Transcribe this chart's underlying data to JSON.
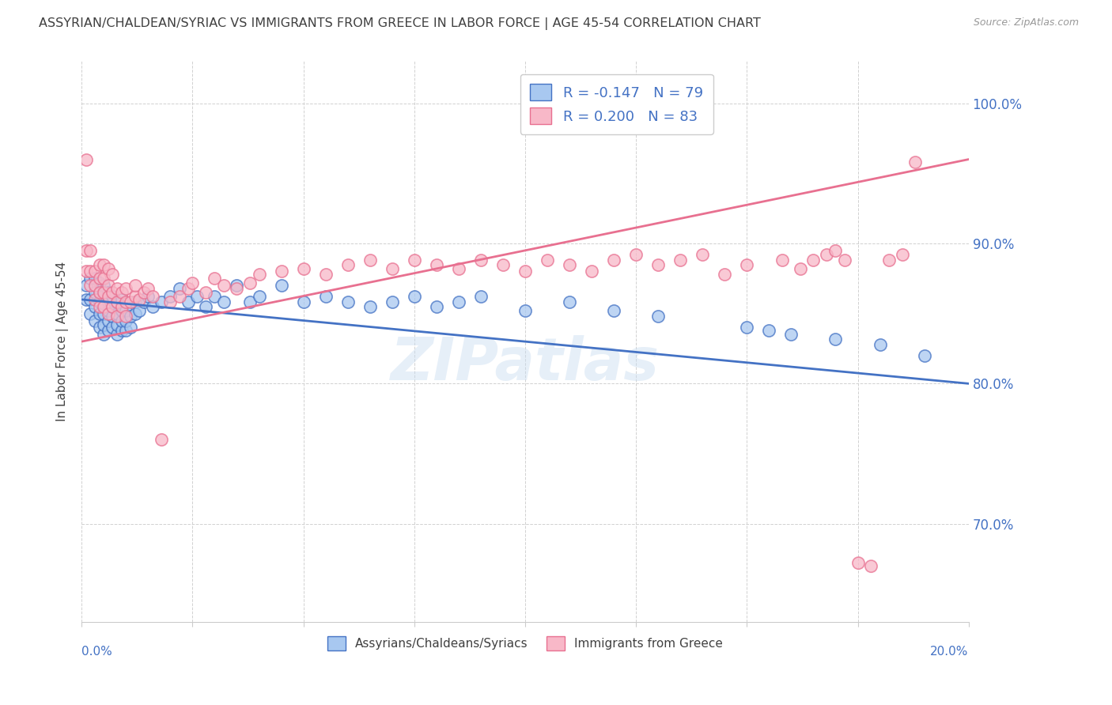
{
  "title": "ASSYRIAN/CHALDEAN/SYRIAC VS IMMIGRANTS FROM GREECE IN LABOR FORCE | AGE 45-54 CORRELATION CHART",
  "source": "Source: ZipAtlas.com",
  "ylabel": "In Labor Force | Age 45-54",
  "legend_label1": "Assyrians/Chaldeans/Syriacs",
  "legend_label2": "Immigrants from Greece",
  "R1": -0.147,
  "N1": 79,
  "R2": 0.2,
  "N2": 83,
  "blue_color": "#A8C8F0",
  "pink_color": "#F8B8C8",
  "blue_line_color": "#4472C4",
  "pink_line_color": "#E87090",
  "title_color": "#404040",
  "axis_label_color": "#4472C4",
  "background_color": "#FFFFFF",
  "watermark_text": "ZIPatlas",
  "xlim": [
    0.0,
    0.2
  ],
  "ylim": [
    0.63,
    1.03
  ],
  "yticks": [
    0.7,
    0.8,
    0.9,
    1.0
  ],
  "ytick_labels": [
    "70.0%",
    "80.0%",
    "90.0%",
    "100.0%"
  ],
  "blue_line_y0": 0.86,
  "blue_line_y1": 0.8,
  "pink_line_y0": 0.83,
  "pink_line_y1": 0.96,
  "blue_scatter_x": [
    0.001,
    0.001,
    0.002,
    0.002,
    0.002,
    0.003,
    0.003,
    0.003,
    0.003,
    0.004,
    0.004,
    0.004,
    0.004,
    0.004,
    0.005,
    0.005,
    0.005,
    0.005,
    0.005,
    0.005,
    0.006,
    0.006,
    0.006,
    0.006,
    0.006,
    0.007,
    0.007,
    0.007,
    0.007,
    0.008,
    0.008,
    0.008,
    0.008,
    0.009,
    0.009,
    0.009,
    0.009,
    0.01,
    0.01,
    0.01,
    0.011,
    0.011,
    0.012,
    0.012,
    0.013,
    0.014,
    0.015,
    0.016,
    0.018,
    0.02,
    0.022,
    0.024,
    0.026,
    0.028,
    0.03,
    0.032,
    0.035,
    0.038,
    0.04,
    0.045,
    0.05,
    0.055,
    0.06,
    0.065,
    0.07,
    0.075,
    0.08,
    0.085,
    0.09,
    0.1,
    0.11,
    0.12,
    0.13,
    0.15,
    0.155,
    0.16,
    0.17,
    0.18,
    0.19
  ],
  "blue_scatter_y": [
    0.86,
    0.87,
    0.85,
    0.86,
    0.875,
    0.845,
    0.855,
    0.865,
    0.875,
    0.84,
    0.85,
    0.858,
    0.865,
    0.872,
    0.835,
    0.842,
    0.85,
    0.857,
    0.863,
    0.87,
    0.838,
    0.845,
    0.852,
    0.858,
    0.865,
    0.84,
    0.848,
    0.855,
    0.862,
    0.835,
    0.842,
    0.85,
    0.858,
    0.838,
    0.845,
    0.852,
    0.86,
    0.838,
    0.845,
    0.852,
    0.84,
    0.848,
    0.85,
    0.858,
    0.852,
    0.858,
    0.862,
    0.855,
    0.858,
    0.862,
    0.868,
    0.858,
    0.862,
    0.855,
    0.862,
    0.858,
    0.87,
    0.858,
    0.862,
    0.87,
    0.858,
    0.862,
    0.858,
    0.855,
    0.858,
    0.862,
    0.855,
    0.858,
    0.862,
    0.852,
    0.858,
    0.852,
    0.848,
    0.84,
    0.838,
    0.835,
    0.832,
    0.828,
    0.82
  ],
  "pink_scatter_x": [
    0.001,
    0.001,
    0.001,
    0.002,
    0.002,
    0.002,
    0.003,
    0.003,
    0.003,
    0.004,
    0.004,
    0.004,
    0.004,
    0.005,
    0.005,
    0.005,
    0.005,
    0.006,
    0.006,
    0.006,
    0.006,
    0.007,
    0.007,
    0.007,
    0.008,
    0.008,
    0.008,
    0.009,
    0.009,
    0.01,
    0.01,
    0.01,
    0.011,
    0.012,
    0.012,
    0.013,
    0.014,
    0.015,
    0.016,
    0.018,
    0.02,
    0.022,
    0.024,
    0.025,
    0.028,
    0.03,
    0.032,
    0.035,
    0.038,
    0.04,
    0.045,
    0.05,
    0.055,
    0.06,
    0.065,
    0.07,
    0.075,
    0.08,
    0.085,
    0.09,
    0.095,
    0.1,
    0.105,
    0.11,
    0.115,
    0.12,
    0.125,
    0.13,
    0.135,
    0.14,
    0.145,
    0.15,
    0.158,
    0.162,
    0.165,
    0.168,
    0.17,
    0.172,
    0.175,
    0.178,
    0.182,
    0.185,
    0.188
  ],
  "pink_scatter_y": [
    0.88,
    0.895,
    0.96,
    0.87,
    0.88,
    0.895,
    0.86,
    0.87,
    0.88,
    0.855,
    0.865,
    0.875,
    0.885,
    0.855,
    0.865,
    0.875,
    0.885,
    0.85,
    0.862,
    0.87,
    0.882,
    0.855,
    0.865,
    0.878,
    0.848,
    0.858,
    0.868,
    0.855,
    0.865,
    0.848,
    0.858,
    0.868,
    0.858,
    0.862,
    0.87,
    0.86,
    0.865,
    0.868,
    0.862,
    0.76,
    0.858,
    0.862,
    0.868,
    0.872,
    0.865,
    0.875,
    0.87,
    0.868,
    0.872,
    0.878,
    0.88,
    0.882,
    0.878,
    0.885,
    0.888,
    0.882,
    0.888,
    0.885,
    0.882,
    0.888,
    0.885,
    0.88,
    0.888,
    0.885,
    0.88,
    0.888,
    0.892,
    0.885,
    0.888,
    0.892,
    0.878,
    0.885,
    0.888,
    0.882,
    0.888,
    0.892,
    0.895,
    0.888,
    0.672,
    0.67,
    0.888,
    0.892,
    0.958
  ]
}
